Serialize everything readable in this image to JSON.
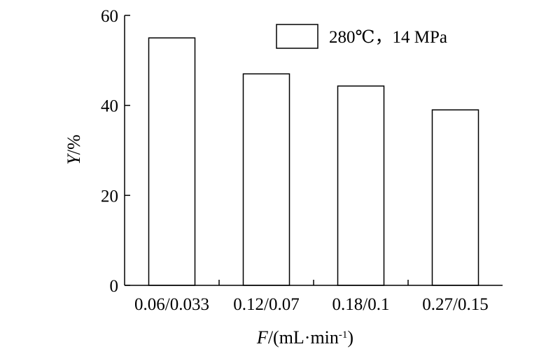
{
  "chart_data": {
    "type": "bar",
    "categories": [
      "0.06/0.033",
      "0.12/0.07",
      "0.18/0.1",
      "0.27/0.15"
    ],
    "series": [
      {
        "name": "280℃，14 MPa",
        "values": [
          55,
          47,
          44.3,
          39
        ]
      }
    ],
    "ylim": [
      0,
      60
    ],
    "yticks": [
      0,
      20,
      40,
      60
    ],
    "ylabel": {
      "italic": "Y",
      "rest": "/%"
    },
    "xlabel": {
      "italic": "F",
      "rest": "/(mL·min",
      "sup": "-1",
      "close": ")"
    },
    "legend": {
      "position": "top-right"
    },
    "grid": false,
    "bar_fill": "#ffffff",
    "bar_stroke": "#000000"
  }
}
